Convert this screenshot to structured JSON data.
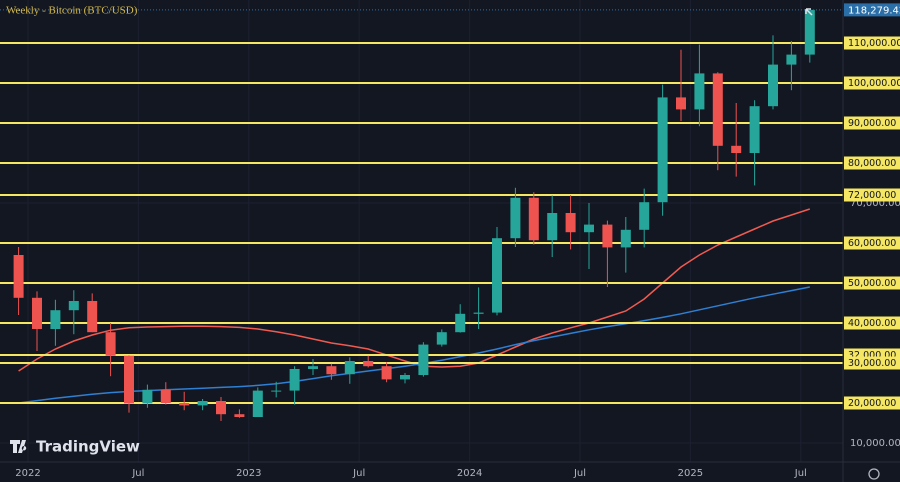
{
  "chart_data": {
    "type": "candlestick",
    "title": "Weekly - Bitcoin (BTC/USD)",
    "watermark": "TradingView",
    "x": [
      "2021-12",
      "2022-01",
      "2022-02",
      "2022-03",
      "2022-04",
      "2022-05",
      "2022-06",
      "2022-07",
      "2022-08",
      "2022-09",
      "2022-10",
      "2022-11",
      "2022-12",
      "2023-01",
      "2023-02",
      "2023-03",
      "2023-04",
      "2023-05",
      "2023-06",
      "2023-07",
      "2023-08",
      "2023-09",
      "2023-10",
      "2023-11",
      "2023-12",
      "2024-01",
      "2024-02",
      "2024-03",
      "2024-04",
      "2024-05",
      "2024-06",
      "2024-07",
      "2024-08",
      "2024-09",
      "2024-10",
      "2024-11",
      "2024-12",
      "2025-01",
      "2025-02",
      "2025-03",
      "2025-04",
      "2025-05",
      "2025-06",
      "2025-07"
    ],
    "open": [
      57000,
      46300,
      38500,
      43200,
      45500,
      37700,
      31800,
      19900,
      23300,
      20000,
      19400,
      20500,
      17200,
      16500,
      23100,
      23100,
      28500,
      29200,
      27200,
      30500,
      29200,
      25900,
      27000,
      34600,
      37700,
      42300,
      42600,
      61200,
      71300,
      60700,
      67500,
      62700,
      64600,
      58900,
      63300,
      70200,
      96400,
      93400,
      102400,
      84300,
      82500,
      94200,
      104600,
      107100
    ],
    "high": [
      59000,
      47900,
      45800,
      48200,
      47400,
      40000,
      31900,
      24600,
      25200,
      22800,
      21000,
      21500,
      18400,
      23900,
      25300,
      29200,
      31000,
      29800,
      31400,
      31800,
      30200,
      27500,
      35200,
      38400,
      44700,
      48900,
      64000,
      73800,
      72700,
      71900,
      72000,
      70000,
      65600,
      66500,
      73600,
      99600,
      108300,
      109600,
      102700,
      95000,
      95700,
      111900,
      110500,
      118300
    ],
    "low": [
      42000,
      33000,
      34300,
      37200,
      37700,
      26700,
      17600,
      18800,
      19600,
      18200,
      18200,
      15500,
      16300,
      16500,
      21400,
      19600,
      27000,
      25800,
      24800,
      28900,
      25200,
      24900,
      26600,
      34100,
      37600,
      38500,
      41900,
      59000,
      59600,
      56500,
      58400,
      53500,
      49000,
      52600,
      58900,
      66800,
      90500,
      89200,
      78200,
      76600,
      74400,
      93400,
      98200,
      105100
    ],
    "close": [
      46300,
      38500,
      43200,
      45500,
      37700,
      31800,
      19900,
      23300,
      20000,
      19400,
      20500,
      17200,
      16500,
      23100,
      23100,
      28500,
      29200,
      27200,
      30500,
      29200,
      25900,
      27000,
      34600,
      37700,
      42300,
      42600,
      61200,
      71300,
      60700,
      67500,
      62700,
      64600,
      58900,
      63300,
      70200,
      96400,
      93400,
      102400,
      84300,
      82500,
      94200,
      104600,
      107100,
      118279.42
    ],
    "up_color": "#26a69a",
    "down_color": "#ef5350",
    "moving_averages": [
      {
        "color": "#f05a50",
        "values": [
          28000,
          31000,
          33500,
          35500,
          37000,
          38200,
          38800,
          39000,
          39100,
          39200,
          39200,
          39100,
          38900,
          38500,
          37800,
          37000,
          36000,
          35000,
          34300,
          33500,
          32000,
          30500,
          29200,
          29000,
          29200,
          30000,
          32000,
          34000,
          36000,
          37500,
          38800,
          40000,
          41500,
          43000,
          46000,
          50000,
          54000,
          57000,
          59500,
          61500,
          63500,
          65500,
          67000,
          68500
        ]
      },
      {
        "color": "#2f7fd3",
        "values": [
          20000,
          20600,
          21200,
          21700,
          22200,
          22600,
          22900,
          23100,
          23300,
          23500,
          23700,
          23900,
          24100,
          24400,
          24800,
          25400,
          26100,
          26800,
          27400,
          28000,
          28600,
          29200,
          29900,
          30700,
          31600,
          32500,
          33500,
          34600,
          35600,
          36500,
          37400,
          38300,
          39100,
          39800,
          40600,
          41400,
          42300,
          43300,
          44300,
          45300,
          46300,
          47200,
          48100,
          49000
        ]
      }
    ],
    "levels": {
      "color": "#f5e663",
      "ticks": [
        {
          "value": 110000,
          "label": "110,000.00"
        },
        {
          "value": 100000,
          "label": "100,000.00"
        },
        {
          "value": 90000,
          "label": "90,000.00"
        },
        {
          "value": 80000,
          "label": "80,000.00"
        },
        {
          "value": 72000,
          "label": "72,000.00"
        },
        {
          "value": 60000,
          "label": "60,000.00"
        },
        {
          "value": 50000,
          "label": "50,000.00"
        },
        {
          "value": 40000,
          "label": "40,000.00"
        },
        {
          "value": 32000,
          "label": "32,000.00"
        },
        {
          "value": 30000,
          "label": "30,000.00"
        },
        {
          "value": 20000,
          "label": "20,000.00"
        }
      ]
    },
    "yticks": [
      {
        "value": 10000,
        "label": "10,000.00"
      },
      {
        "value": 70000,
        "label": "70,000.00"
      }
    ],
    "last_price": {
      "value": 118279.42,
      "label": "118,279.42",
      "color": "#2b6fa8"
    },
    "ylim": [
      5250,
      120750
    ],
    "xticks": [
      {
        "value": "2022-01",
        "label": "2022"
      },
      {
        "value": "2022-07",
        "label": "Jul"
      },
      {
        "value": "2023-01",
        "label": "2023"
      },
      {
        "value": "2023-07",
        "label": "Jul"
      },
      {
        "value": "2024-01",
        "label": "2024"
      },
      {
        "value": "2024-07",
        "label": "Jul"
      },
      {
        "value": "2025-01",
        "label": "2025"
      },
      {
        "value": "2025-07",
        "label": "Jul"
      }
    ]
  }
}
